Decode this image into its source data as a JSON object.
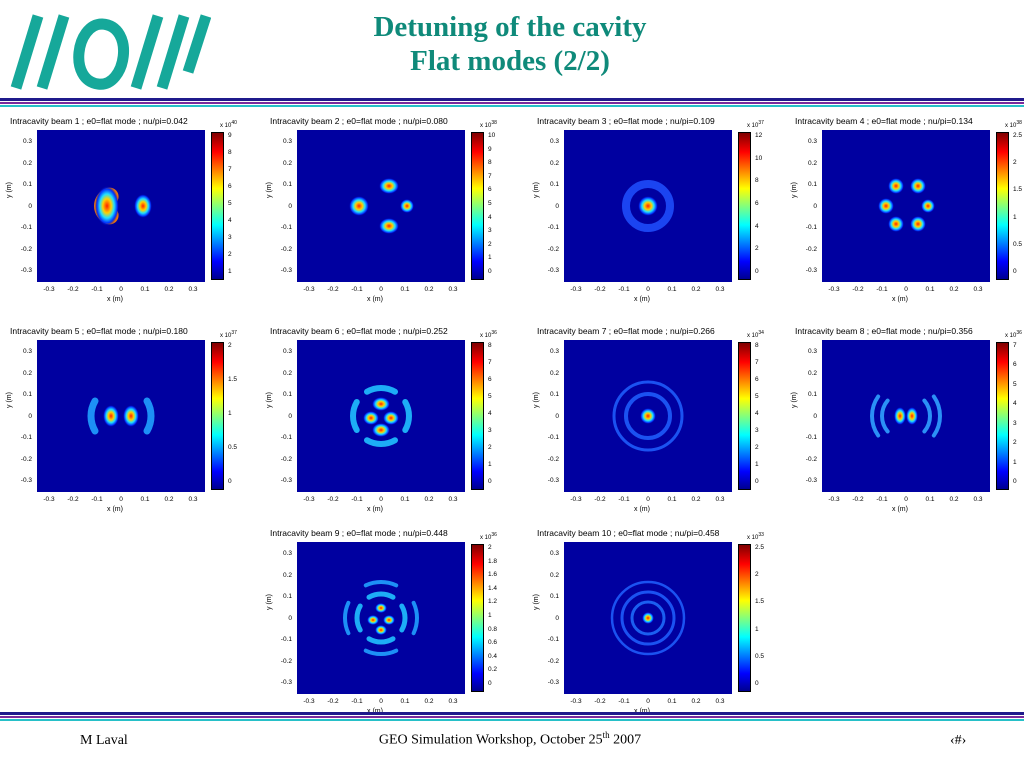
{
  "slide": {
    "title_line1": "Detuning of the cavity",
    "title_line2": "Flat modes (2/2)",
    "footer_left": "M Laval",
    "footer_center_prefix": "GEO Simulation Workshop,  October 25",
    "footer_center_sup": "th",
    "footer_center_suffix": " 2007",
    "footer_right": "‹#›",
    "colors": {
      "title": "#0f8a7a",
      "rule_dark": "#1f1a8c",
      "rule_purple": "#7a2a9c",
      "rule_cyan": "#27c0c8",
      "plot_bg": "#0000a0"
    }
  },
  "axis": {
    "xlabel": "x (m)",
    "ylabel": "y (m)",
    "yticks": [
      "0.3",
      "0.2",
      "0.1",
      "0",
      "-0.1",
      "-0.2",
      "-0.3"
    ],
    "xticks": [
      "-0.3",
      "-0.2",
      "-0.1",
      "0",
      "0.1",
      "0.2",
      "0.3"
    ]
  },
  "panels": [
    {
      "title": "Intracavity beam 1 ; e0=flat mode ; nu/pi=0.042",
      "exp": "40",
      "cbticks": [
        "9",
        "8",
        "7",
        "6",
        "5",
        "4",
        "3",
        "2",
        "1"
      ],
      "pattern": "crescent"
    },
    {
      "title": "Intracavity beam 2 ; e0=flat mode ; nu/pi=0.080",
      "exp": "38",
      "cbticks": [
        "10",
        "9",
        "8",
        "7",
        "6",
        "5",
        "4",
        "3",
        "2",
        "1",
        "0"
      ],
      "pattern": "blobs4"
    },
    {
      "title": "Intracavity beam 3 ; e0=flat mode ; nu/pi=0.109",
      "exp": "37",
      "cbticks": [
        "12",
        "10",
        "8",
        "6",
        "4",
        "2",
        "0"
      ],
      "pattern": "ring1"
    },
    {
      "title": "Intracavity beam 4 ; e0=flat mode ; nu/pi=0.134",
      "exp": "38",
      "cbticks": [
        "2.5",
        "2",
        "1.5",
        "1",
        "0.5",
        "0"
      ],
      "pattern": "blobs6"
    },
    {
      "title": "Intracavity beam 5 ; e0=flat mode ; nu/pi=0.180",
      "exp": "37",
      "cbticks": [
        "2",
        "1.5",
        "1",
        "0.5",
        "0"
      ],
      "pattern": "arcs2"
    },
    {
      "title": "Intracavity beam 6 ; e0=flat mode ; nu/pi=0.252",
      "exp": "36",
      "cbticks": [
        "8",
        "7",
        "6",
        "5",
        "4",
        "3",
        "2",
        "1",
        "0"
      ],
      "pattern": "cross"
    },
    {
      "title": "Intracavity beam 7 ; e0=flat mode ; nu/pi=0.266",
      "exp": "34",
      "cbticks": [
        "8",
        "7",
        "6",
        "5",
        "4",
        "3",
        "2",
        "1",
        "0"
      ],
      "pattern": "ring2"
    },
    {
      "title": "Intracavity beam 8 ; e0=flat mode ; nu/pi=0.356",
      "exp": "36",
      "cbticks": [
        "7",
        "6",
        "5",
        "4",
        "3",
        "2",
        "1",
        "0"
      ],
      "pattern": "arcs3"
    },
    {
      "title": "Intracavity beam 9 ; e0=flat mode ; nu/pi=0.448",
      "exp": "36",
      "cbticks": [
        "2",
        "1.8",
        "1.6",
        "1.4",
        "1.2",
        "1",
        "0.8",
        "0.6",
        "0.4",
        "0.2",
        "0"
      ],
      "pattern": "cross2"
    },
    {
      "title": "Intracavity beam 10 ; e0=flat mode ; nu/pi=0.458",
      "exp": "33",
      "cbticks": [
        "2.5",
        "2",
        "1.5",
        "1",
        "0.5",
        "0"
      ],
      "pattern": "ring3"
    }
  ]
}
